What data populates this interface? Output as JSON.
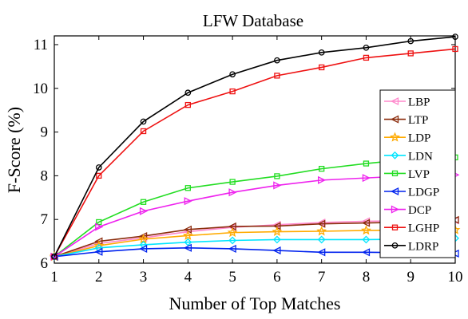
{
  "chart_data": {
    "type": "line",
    "title": "LFW Database",
    "xlabel": "Number of Top Matches",
    "ylabel": "F-Score (%)",
    "xlim": [
      1,
      10
    ],
    "ylim": [
      6,
      11.2
    ],
    "xticks": [
      1,
      2,
      3,
      4,
      5,
      6,
      7,
      8,
      9,
      10
    ],
    "yticks": [
      6,
      7,
      8,
      9,
      10,
      11
    ],
    "grid": false,
    "legend_position": "right",
    "x": [
      1,
      2,
      3,
      4,
      5,
      6,
      7,
      8,
      9,
      10
    ],
    "series": [
      {
        "name": "LBP",
        "color": "#ff88cc",
        "marker": "triangle-left",
        "values": [
          6.15,
          6.45,
          6.58,
          6.72,
          6.82,
          6.88,
          6.93,
          6.96,
          6.97,
          6.98
        ]
      },
      {
        "name": "LTP",
        "color": "#8b2c0c",
        "marker": "triangle-left",
        "values": [
          6.15,
          6.5,
          6.62,
          6.77,
          6.84,
          6.85,
          6.9,
          6.92,
          6.94,
          6.99
        ]
      },
      {
        "name": "LDP",
        "color": "#ffaa00",
        "marker": "star",
        "values": [
          6.15,
          6.4,
          6.55,
          6.63,
          6.7,
          6.72,
          6.73,
          6.75,
          6.76,
          6.76
        ]
      },
      {
        "name": "LDN",
        "color": "#00e5ff",
        "marker": "diamond",
        "values": [
          6.15,
          6.35,
          6.42,
          6.48,
          6.52,
          6.54,
          6.54,
          6.54,
          6.55,
          6.57
        ]
      },
      {
        "name": "LVP",
        "color": "#22dd22",
        "marker": "square",
        "values": [
          6.15,
          6.94,
          7.4,
          7.72,
          7.86,
          7.99,
          8.16,
          8.28,
          8.38,
          8.42
        ]
      },
      {
        "name": "LDGP",
        "color": "#0022ee",
        "marker": "triangle-left",
        "values": [
          6.15,
          6.26,
          6.33,
          6.35,
          6.33,
          6.29,
          6.25,
          6.25,
          6.24,
          6.22
        ]
      },
      {
        "name": "DCP",
        "color": "#ee22ee",
        "marker": "triangle-right",
        "values": [
          6.15,
          6.83,
          7.19,
          7.42,
          7.62,
          7.78,
          7.9,
          7.95,
          8.0,
          8.02
        ]
      },
      {
        "name": "LGHP",
        "color": "#ee1111",
        "marker": "square",
        "values": [
          6.15,
          8.0,
          9.02,
          9.62,
          9.93,
          10.29,
          10.48,
          10.7,
          10.8,
          10.9
        ]
      },
      {
        "name": "LDRP",
        "color": "#000000",
        "marker": "circle",
        "values": [
          6.15,
          8.19,
          9.24,
          9.9,
          10.32,
          10.64,
          10.82,
          10.93,
          11.08,
          11.18
        ]
      }
    ]
  }
}
